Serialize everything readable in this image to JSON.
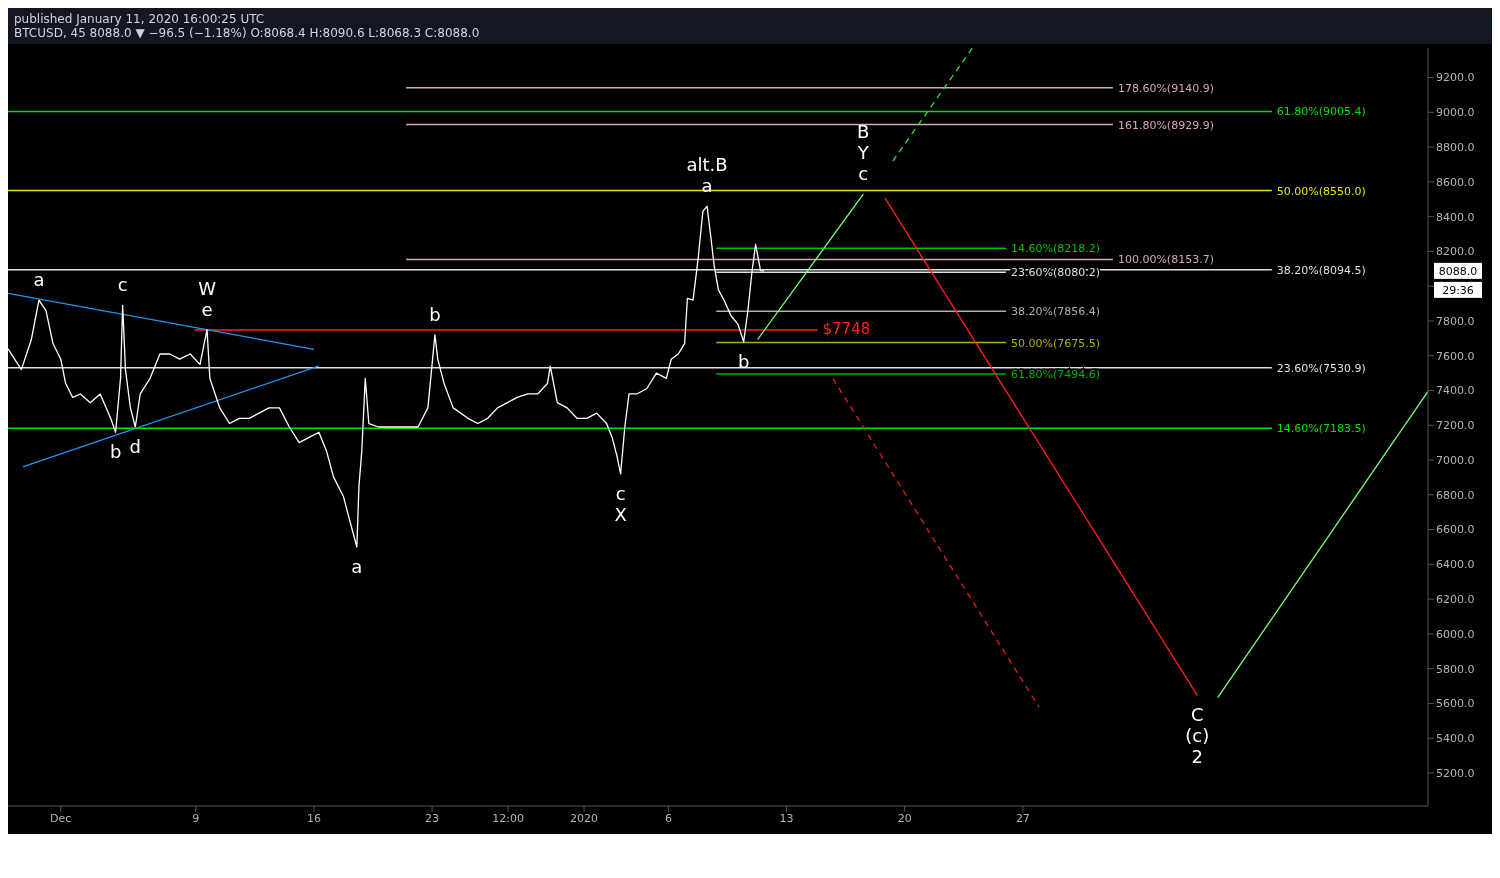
{
  "chart_data": {
    "type": "line",
    "title": "published January 11, 2020 16:00:25 UTC",
    "subtitle": "BTCUSD, 45 8088.0 ▼ −96.5 (−1.18%) O:8068.4 H:8090.6 L:8068.3 C:8088.0",
    "xlim": [
      "2019-11-27T21:00",
      "2020-02-20T00:00"
    ],
    "xticks": [
      {
        "value": "2019-12-01",
        "label": "Dec"
      },
      {
        "value": "2019-12-09",
        "label": "9"
      },
      {
        "value": "2019-12-16",
        "label": "16"
      },
      {
        "value": "2019-12-23",
        "label": "23"
      },
      {
        "value": "2019-12-27T12:00",
        "label": "12:00"
      },
      {
        "value": "2020-01-01",
        "label": "2020"
      },
      {
        "value": "2020-01-06",
        "label": "6"
      },
      {
        "value": "2020-01-13",
        "label": "13"
      },
      {
        "value": "2020-01-20",
        "label": "20"
      },
      {
        "value": "2020-01-27",
        "label": "27"
      }
    ],
    "ylim": [
      5010,
      9370
    ],
    "yticks": [
      {
        "value": 5200,
        "label": "5200.0"
      },
      {
        "value": 5400,
        "label": "5400.0"
      },
      {
        "value": 5600,
        "label": "5600.0"
      },
      {
        "value": 5800,
        "label": "5800.0"
      },
      {
        "value": 6000,
        "label": "6000.0"
      },
      {
        "value": 6200,
        "label": "6200.0"
      },
      {
        "value": 6400,
        "label": "6400.0"
      },
      {
        "value": 6600,
        "label": "6600.0"
      },
      {
        "value": 6800,
        "label": "6800.0"
      },
      {
        "value": 7000,
        "label": "7000.0"
      },
      {
        "value": 7200,
        "label": "7200.0"
      },
      {
        "value": 7400,
        "label": "7400.0"
      },
      {
        "value": 7600,
        "label": "7600.0"
      },
      {
        "value": 7800,
        "label": "7800.0"
      },
      {
        "value": 8000,
        "label": null
      },
      {
        "value": 8200,
        "label": "8200.0"
      },
      {
        "value": 8400,
        "label": "8400.0"
      },
      {
        "value": 8600,
        "label": "8600.0"
      },
      {
        "value": 8800,
        "label": "8800.0"
      },
      {
        "value": 9000,
        "label": "9000.0"
      },
      {
        "value": 9200,
        "label": "9200.0"
      }
    ],
    "series": [
      {
        "name": "178.60%(9140.9)",
        "color": "#d8a8b4",
        "x": [
          "2019-12-21T11:00",
          "2020-02-01T08:00"
        ],
        "values": [
          9140.9,
          9140.9
        ]
      },
      {
        "type": "line",
        "name": "61.80%(9005.4)",
        "color": "#00e000",
        "x": [
          "2019-11-27T21:00",
          "2020-02-10T18:00"
        ],
        "values": [
          9005.4,
          9005.4
        ]
      },
      {
        "type": "line",
        "name": "161.80%(8929.9)",
        "color": "#d8a8b4",
        "x": [
          "2019-12-21T11:00",
          "2020-02-01T08:00"
        ],
        "values": [
          8929.9,
          8929.9
        ]
      },
      {
        "type": "line",
        "name": "50.00%(8550.0)",
        "color": "#e6e600",
        "x": [
          "2019-11-27T21:00",
          "2020-02-10T18:00"
        ],
        "values": [
          8550.0,
          8550.0
        ]
      },
      {
        "type": "line",
        "name": "14.60%(8218.2)",
        "color": "#00c000",
        "x": [
          "2020-01-08T20:00",
          "2020-01-26T00:00"
        ],
        "values": [
          8218.2,
          8218.2
        ]
      },
      {
        "type": "line",
        "name": "100.00%(8153.7)",
        "color": "#d8a8b4",
        "x": [
          "2019-12-21T11:00",
          "2020-02-01T08:00"
        ],
        "values": [
          8153.7,
          8153.7
        ]
      },
      {
        "type": "line",
        "name": "38.20%(8094.5)",
        "color": "#e0e0e0",
        "x": [
          "2019-11-27T21:00",
          "2020-02-10T18:00"
        ],
        "values": [
          8094.5,
          8094.5
        ]
      },
      {
        "type": "line",
        "name": "23.60%(8080.2)",
        "color": "#e0e0e0",
        "x": [
          "2020-01-08T20:00",
          "2020-01-26T00:00"
        ],
        "values": [
          8080.2,
          8080.2
        ]
      },
      {
        "type": "line",
        "name": "38.20%(7856.4)",
        "color": "#b0b0b0",
        "x": [
          "2020-01-08T20:00",
          "2020-01-26T00:00"
        ],
        "values": [
          7856.4,
          7856.4
        ]
      },
      {
        "type": "line",
        "name": "50.00%(7675.5)",
        "color": "#b0b000",
        "x": [
          "2020-01-08T20:00",
          "2020-01-26T00:00"
        ],
        "values": [
          7675.5,
          7675.5
        ]
      },
      {
        "type": "line",
        "name": "23.60%(7530.9)",
        "color": "#e0e0e0",
        "x": [
          "2019-11-27T21:00",
          "2020-02-10T18:00"
        ],
        "values": [
          7530.9,
          7530.9
        ]
      },
      {
        "type": "line",
        "name": "61.80%(7494.6)",
        "color": "#00b000",
        "x": [
          "2020-01-08T20:00",
          "2020-01-26T00:00"
        ],
        "values": [
          7494.6,
          7494.6
        ]
      },
      {
        "type": "line",
        "name": "14.60%(7183.5)",
        "color": "#00e000",
        "x": [
          "2019-11-27T21:00",
          "2020-02-10T18:00"
        ],
        "values": [
          7183.5,
          7183.5
        ]
      },
      {
        "type": "line",
        "name": "$7748",
        "color": "#ff2020",
        "x": [
          "2019-12-08T22:00",
          "2020-01-14T20:00"
        ],
        "values": [
          7748,
          7748
        ]
      },
      {
        "type": "line",
        "color": "#2196f3",
        "x": [
          "2019-11-27T21:00",
          "2019-12-16T00:00"
        ],
        "values": [
          7959,
          7637
        ]
      },
      {
        "type": "line",
        "color": "#2196f3",
        "x": [
          "2019-11-28T18:00",
          "2019-12-16T07:00"
        ],
        "values": [
          6960,
          7541
        ]
      },
      {
        "type": "line",
        "color": "#ffffff",
        "x": [
          "2019-11-27T21:00",
          "2019-11-28T16:00",
          "2019-11-29T06:00",
          "2019-11-29T17:00",
          "2019-11-30T03:00",
          "2019-11-30T13:00",
          "2019-12-01T00:00",
          "2019-12-01T07:00",
          "2019-12-01T17:00",
          "2019-12-02T04:00",
          "2019-12-02T18:00",
          "2019-12-03T08:00",
          "2019-12-03T23:00",
          "2019-12-04T06:00",
          "2019-12-04T13:00",
          "2019-12-04T16:00",
          "2019-12-04T20:00",
          "2019-12-05T03:00",
          "2019-12-05T10:00",
          "2019-12-05T17:00",
          "2019-12-06T07:00",
          "2019-12-06T21:00",
          "2019-12-07T11:00",
          "2019-12-08T01:00",
          "2019-12-08T16:00",
          "2019-12-09T06:00",
          "2019-12-09T16:00",
          "2019-12-09T20:00",
          "2019-12-10T10:00",
          "2019-12-11T00:00",
          "2019-12-11T14:00",
          "2019-12-12T04:00",
          "2019-12-12T18:00",
          "2019-12-13T08:00",
          "2019-12-13T23:00",
          "2019-12-14T13:00",
          "2019-12-15T03:00",
          "2019-12-15T17:00",
          "2019-12-16T07:00",
          "2019-12-16T18:00",
          "2019-12-17T04:00",
          "2019-12-17T18:00",
          "2019-12-18T01:00",
          "2019-12-18T13:00",
          "2019-12-18T16:00",
          "2019-12-18T20:00",
          "2019-12-19T01:00",
          "2019-12-19T06:00",
          "2019-12-19T20:00",
          "2019-12-21T00:00",
          "2019-12-22T04:00",
          "2019-12-22T18:00",
          "2019-12-23T04:00",
          "2019-12-23T08:00",
          "2019-12-23T17:00",
          "2019-12-24T06:00",
          "2019-12-25T03:00",
          "2019-12-25T17:00",
          "2019-12-26T07:00",
          "2019-12-26T21:00",
          "2019-12-27T11:00",
          "2019-12-28T01:00",
          "2019-12-28T16:00",
          "2019-12-29T06:00",
          "2019-12-29T20:00",
          "2019-12-30T00:00",
          "2019-12-30T10:00",
          "2019-12-31T00:00",
          "2019-12-31T14:00",
          "2020-01-01T04:00",
          "2020-01-01T18:00",
          "2020-01-02T08:00",
          "2020-01-02T16:00",
          "2020-01-02T23:00",
          "2020-01-03T04:00",
          "2020-01-03T10:00",
          "2020-01-03T16:00",
          "2020-01-04T03:00",
          "2020-01-04T17:00",
          "2020-01-05T07:00",
          "2020-01-05T21:00",
          "2020-01-06T04:00",
          "2020-01-06T14:00",
          "2020-01-06T23:00",
          "2020-01-07T03:00",
          "2020-01-07T11:00",
          "2020-01-07T18:00",
          "2020-01-08T01:00",
          "2020-01-08T07:00",
          "2020-01-08T13:00",
          "2020-01-08T17:00",
          "2020-01-08T23:00",
          "2020-01-09T07:00",
          "2020-01-09T17:00",
          "2020-01-10T03:00",
          "2020-01-10T11:00",
          "2020-01-10T17:00",
          "2020-01-10T23:00",
          "2020-01-11T04:00",
          "2020-01-11T11:00",
          "2020-01-11T16:00"
        ],
        "values": [
          7640,
          7520,
          7690,
          7920,
          7860,
          7670,
          7580,
          7440,
          7360,
          7380,
          7330,
          7380,
          7240,
          7160,
          7470,
          7890,
          7520,
          7300,
          7190,
          7380,
          7470,
          7610,
          7610,
          7580,
          7610,
          7550,
          7750,
          7470,
          7300,
          7210,
          7240,
          7240,
          7270,
          7300,
          7300,
          7190,
          7100,
          7130,
          7160,
          7050,
          6900,
          6790,
          6680,
          6500,
          6850,
          7050,
          7470,
          7210,
          7190,
          7190,
          7190,
          7300,
          7720,
          7580,
          7440,
          7300,
          7240,
          7210,
          7240,
          7300,
          7330,
          7360,
          7380,
          7380,
          7440,
          7540,
          7330,
          7300,
          7240,
          7240,
          7270,
          7210,
          7130,
          7020,
          6920,
          7190,
          7380,
          7380,
          7410,
          7500,
          7470,
          7580,
          7610,
          7670,
          7930,
          7920,
          8150,
          8430,
          8460,
          8260,
          8120,
          7980,
          7920,
          7830,
          7780,
          7680,
          7860,
          8090,
          8240,
          8090,
          8088
        ]
      },
      {
        "type": "line",
        "color": "#7cff7c",
        "x": [
          "2020-01-11T07:00",
          "2020-01-17T13:00"
        ],
        "values": [
          7694,
          8529
        ]
      },
      {
        "type": "line",
        "color": "#30e030",
        "line_style": "dashed",
        "x": [
          "2020-01-19T07:00",
          "2020-01-24T00:00"
        ],
        "values": [
          8720,
          9369
        ]
      },
      {
        "type": "line",
        "color": "#ff2020",
        "x": [
          "2020-01-18T20:00",
          "2020-02-06T08:00"
        ],
        "values": [
          8506,
          5646
        ]
      },
      {
        "type": "line",
        "color": "#e02020",
        "line_style": "dashed",
        "x": [
          "2020-01-15T18:00",
          "2020-01-27T23:00"
        ],
        "values": [
          7468,
          5578
        ]
      },
      {
        "type": "line",
        "color": "#7cff7c",
        "x": [
          "2020-02-07T13:00",
          "2020-02-20T00:00"
        ],
        "values": [
          5634,
          7395
        ]
      }
    ],
    "annotations": [
      {
        "text": "a",
        "x": "2019-11-29T17:00",
        "y": 7920
      },
      {
        "text": "c",
        "x": "2019-12-04T16:00",
        "y": 7890
      },
      {
        "text": "e",
        "x": "2019-12-09T16:00",
        "y": 7750
      },
      {
        "text": "W",
        "x": "2019-12-09T16:00",
        "y": 7750
      },
      {
        "text": "b",
        "x": "2019-12-04T06:00",
        "y": 7160
      },
      {
        "text": "d",
        "x": "2019-12-05T10:00",
        "y": 7190
      },
      {
        "text": "a",
        "x": "2019-12-18T13:00",
        "y": 6500
      },
      {
        "text": "b",
        "x": "2019-12-23T04:00",
        "y": 7720
      },
      {
        "text": "c",
        "x": "2020-01-03T04:00",
        "y": 6920
      },
      {
        "text": "X",
        "x": "2020-01-03T04:00",
        "y": 6920
      },
      {
        "text": "a",
        "x": "2020-01-08T07:00",
        "y": 8460
      },
      {
        "text": "alt.B",
        "x": "2020-01-08T07:00",
        "y": 8460
      },
      {
        "text": "b",
        "x": "2020-01-10T11:00",
        "y": 7680
      },
      {
        "text": "c",
        "x": "2020-01-17T13:00",
        "y": 8529
      },
      {
        "text": "Y",
        "x": "2020-01-17T13:00",
        "y": 8529
      },
      {
        "text": "B",
        "x": "2020-01-17T13:00",
        "y": 8529
      },
      {
        "text": "C",
        "x": "2020-02-06T08:00",
        "y": 5646
      },
      {
        "text": "(c)",
        "x": "2020-02-06T08:00",
        "y": 5646
      },
      {
        "text": "2",
        "x": "2020-02-06T08:00",
        "y": 5646
      },
      "8088.0",
      "29:36"
    ]
  }
}
